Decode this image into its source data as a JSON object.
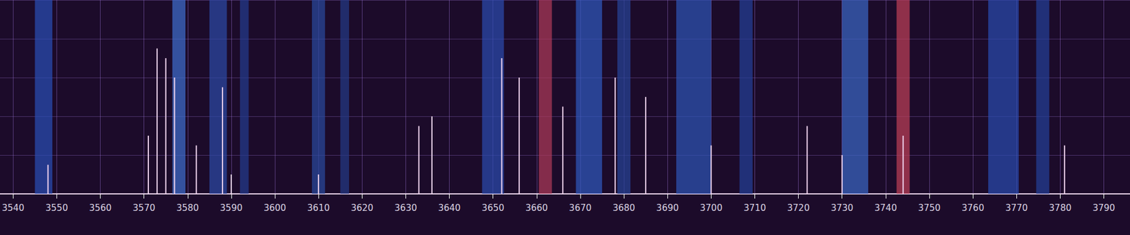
{
  "chart_data": {
    "type": "bar",
    "xlim": [
      3537,
      3796
    ],
    "xticks": [
      3540,
      3550,
      3560,
      3570,
      3580,
      3590,
      3600,
      3610,
      3620,
      3630,
      3640,
      3650,
      3660,
      3670,
      3680,
      3690,
      3700,
      3710,
      3720,
      3730,
      3740,
      3750,
      3760,
      3770,
      3780,
      3790
    ],
    "ylim": [
      0,
      100
    ],
    "grid": true,
    "tick_labels": "x",
    "series": [
      {
        "type": "band",
        "x": [
          3547,
          3578,
          3587,
          3593,
          3610,
          3616,
          3650,
          3662,
          3672,
          3680,
          3696,
          3708,
          3733,
          3744,
          3767,
          3776
        ],
        "widths": [
          4,
          3,
          4,
          2,
          3,
          2,
          5,
          3,
          6,
          3,
          8,
          3,
          6,
          3,
          7,
          3
        ],
        "colors": [
          "#2a4fb8",
          "#3f6fd0",
          "#2c4aa8",
          "#243c90",
          "#2a4aa0",
          "#233a88",
          "#2b4cb0",
          "#b03a5a",
          "#2f5ac0",
          "#26449a",
          "#2e56b8",
          "#24409a",
          "#3a68c8",
          "#c04058",
          "#2a4cb0",
          "#24409a"
        ]
      },
      {
        "type": "bar",
        "color": "#f0d4ee",
        "x": [
          3548,
          3571,
          3573,
          3575,
          3577,
          3582,
          3588,
          3590,
          3610,
          3633,
          3636,
          3652,
          3656,
          3666,
          3678,
          3685,
          3700,
          3722,
          3730,
          3744,
          3781
        ],
        "values": [
          15,
          30,
          75,
          70,
          60,
          25,
          55,
          10,
          10,
          35,
          40,
          70,
          60,
          45,
          60,
          50,
          25,
          35,
          20,
          30,
          25
        ]
      }
    ]
  }
}
